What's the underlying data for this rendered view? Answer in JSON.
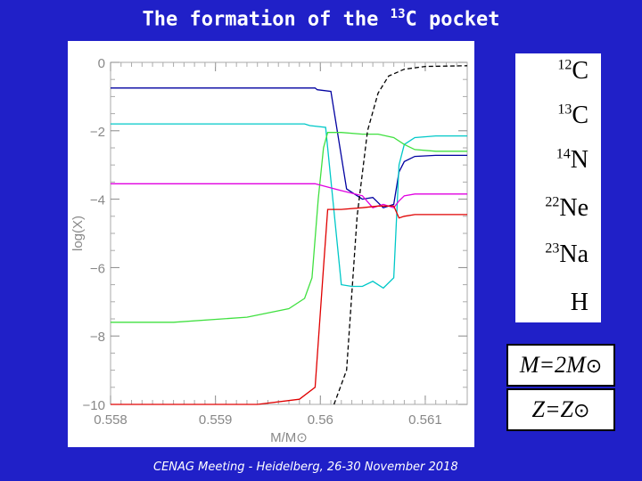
{
  "title": {
    "prefix": "The formation of the ",
    "isotope_mass": "13",
    "isotope_symbol": "C",
    "suffix": " pocket"
  },
  "footer": "CENAG Meeting - Heidelberg, 26-30 November 2018",
  "legend": [
    {
      "mass": "12",
      "symbol": "C",
      "color": "#0000a0"
    },
    {
      "mass": "13",
      "symbol": "C",
      "color": "#00c8c8"
    },
    {
      "mass": "14",
      "symbol": "N",
      "color": "#40e040"
    },
    {
      "mass": "22",
      "symbol": "Ne",
      "color": "#e000e0"
    },
    {
      "mass": "23",
      "symbol": "Na",
      "color": "#e00000"
    },
    {
      "mass": "",
      "symbol": "H",
      "color": "#000000"
    }
  ],
  "params": {
    "mass_label": "M=2M",
    "metallicity_label": "Z=Z",
    "sun_symbol": "⊙"
  },
  "colors": {
    "background": "#2020c8",
    "panel": "#ffffff"
  },
  "chart_data": {
    "type": "line",
    "xlabel": "M/M⊙",
    "ylabel": "log(X)",
    "xlim": [
      0.558,
      0.5614
    ],
    "ylim": [
      -10,
      0
    ],
    "x_ticks": [
      "0.558",
      "0.559",
      "0.56",
      "0.561"
    ],
    "y_ticks": [
      "0",
      "−2",
      "−4",
      "−6",
      "−8",
      "−10"
    ],
    "series": [
      {
        "name": "12C",
        "color": "#0000a0",
        "dash": false,
        "x": [
          0.558,
          0.55995,
          0.55997,
          0.5601,
          0.56025,
          0.5604,
          0.5605,
          0.5606,
          0.5607,
          0.56075,
          0.5608,
          0.5609,
          0.5611,
          0.5614
        ],
        "y": [
          -0.75,
          -0.75,
          -0.8,
          -0.85,
          -3.7,
          -4.0,
          -3.95,
          -4.25,
          -4.15,
          -3.2,
          -2.9,
          -2.75,
          -2.72,
          -2.72
        ]
      },
      {
        "name": "13C",
        "color": "#00c8c8",
        "dash": false,
        "x": [
          0.558,
          0.55985,
          0.5599,
          0.56005,
          0.5602,
          0.5603,
          0.5604,
          0.5605,
          0.5606,
          0.5607,
          0.56075,
          0.5608,
          0.5609,
          0.5611,
          0.5614
        ],
        "y": [
          -1.8,
          -1.8,
          -1.85,
          -1.9,
          -6.5,
          -6.55,
          -6.55,
          -6.4,
          -6.6,
          -6.3,
          -3.0,
          -2.4,
          -2.2,
          -2.15,
          -2.15
        ]
      },
      {
        "name": "14N",
        "color": "#40e040",
        "dash": false,
        "x": [
          0.558,
          0.5586,
          0.5593,
          0.5597,
          0.55985,
          0.55992,
          0.55998,
          0.56003,
          0.56007,
          0.5602,
          0.5604,
          0.56055,
          0.5607,
          0.5608,
          0.5609,
          0.5611,
          0.5614
        ],
        "y": [
          -7.6,
          -7.6,
          -7.45,
          -7.2,
          -6.9,
          -6.3,
          -4.0,
          -2.5,
          -2.05,
          -2.05,
          -2.1,
          -2.1,
          -2.2,
          -2.4,
          -2.55,
          -2.6,
          -2.6
        ]
      },
      {
        "name": "22Ne",
        "color": "#e000e0",
        "dash": false,
        "x": [
          0.558,
          0.55995,
          0.5602,
          0.5604,
          0.5605,
          0.5606,
          0.5607,
          0.56075,
          0.5608,
          0.5609,
          0.5611,
          0.5614
        ],
        "y": [
          -3.55,
          -3.55,
          -3.75,
          -3.9,
          -4.25,
          -4.15,
          -4.25,
          -4.05,
          -3.9,
          -3.85,
          -3.85,
          -3.85
        ]
      },
      {
        "name": "23Na",
        "color": "#e00000",
        "dash": false,
        "x": [
          0.558,
          0.5594,
          0.5598,
          0.55995,
          0.56003,
          0.56007,
          0.5602,
          0.5604,
          0.56055,
          0.5607,
          0.56075,
          0.5608,
          0.5609,
          0.5611,
          0.5614
        ],
        "y": [
          -10.0,
          -10.0,
          -9.85,
          -9.5,
          -6.0,
          -4.3,
          -4.3,
          -4.25,
          -4.2,
          -4.2,
          -4.55,
          -4.5,
          -4.45,
          -4.45,
          -4.45
        ]
      },
      {
        "name": "H",
        "color": "#000000",
        "dash": true,
        "x": [
          0.56013,
          0.56025,
          0.56035,
          0.56045,
          0.56055,
          0.56065,
          0.5608,
          0.561,
          0.5614
        ],
        "y": [
          -10.0,
          -9.0,
          -4.5,
          -2.0,
          -0.9,
          -0.4,
          -0.2,
          -0.12,
          -0.1
        ]
      }
    ]
  }
}
